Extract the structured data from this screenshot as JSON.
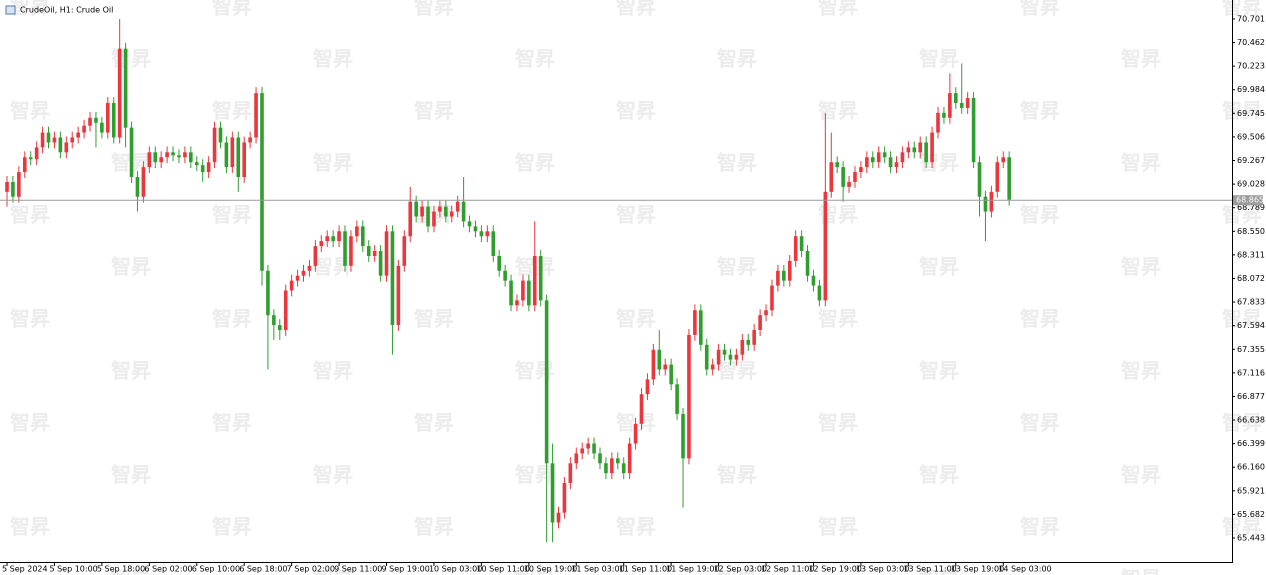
{
  "chart_data": {
    "type": "candlestick",
    "title": "CrudeOil, H1:  Crude Oil",
    "watermark": "智昇",
    "up_color": "#e8373d",
    "down_color": "#2f9e2f",
    "ylim": [
      65.2,
      70.893
    ],
    "yticks": [
      70.701,
      70.462,
      70.223,
      69.984,
      69.745,
      69.506,
      69.267,
      69.028,
      68.789,
      {
        "value": 68.55,
        "label": "68.550"
      },
      68.311,
      68.072,
      67.833,
      67.594,
      67.355,
      67.116,
      66.877,
      66.638,
      66.399,
      {
        "value": 66.16,
        "label": "66.160"
      },
      65.921,
      65.682,
      65.443
    ],
    "last_price": 68.865,
    "categories": [
      "5 Sep 2024",
      null,
      null,
      null,
      null,
      null,
      null,
      null,
      "5 Sep 10:00",
      null,
      null,
      null,
      null,
      null,
      null,
      null,
      "5 Sep 18:00",
      null,
      null,
      null,
      null,
      null,
      null,
      null,
      "6 Sep 02:00",
      null,
      null,
      null,
      null,
      null,
      null,
      null,
      "6 Sep 10:00",
      null,
      null,
      null,
      null,
      null,
      null,
      null,
      "6 Sep 18:00",
      null,
      null,
      null,
      null,
      null,
      null,
      null,
      "7 Sep 02:00",
      null,
      null,
      null,
      null,
      null,
      null,
      null,
      "9 Sep 11:00",
      null,
      null,
      null,
      null,
      null,
      null,
      null,
      "9 Sep 19:00",
      null,
      null,
      null,
      null,
      null,
      null,
      null,
      "10 Sep 03:00",
      null,
      null,
      null,
      null,
      null,
      null,
      null,
      "10 Sep 11:00",
      null,
      null,
      null,
      null,
      null,
      null,
      null,
      "10 Sep 19:00",
      null,
      null,
      null,
      null,
      null,
      null,
      null,
      "11 Sep 03:00",
      null,
      null,
      null,
      null,
      null,
      null,
      null,
      "11 Sep 11:00",
      null,
      null,
      null,
      null,
      null,
      null,
      null,
      "11 Sep 19:00",
      null,
      null,
      null,
      null,
      null,
      null,
      null,
      "12 Sep 03:00",
      null,
      null,
      null,
      null,
      null,
      null,
      null,
      "12 Sep 11:00",
      null,
      null,
      null,
      null,
      null,
      null,
      null,
      "12 Sep 19:00",
      null,
      null,
      null,
      null,
      null,
      null,
      null,
      "13 Sep 03:00",
      null,
      null,
      null,
      null,
      null,
      null,
      null,
      "13 Sep 11:00",
      null,
      null,
      null,
      null,
      null,
      null,
      null,
      "13 Sep 19:00",
      null,
      null,
      null,
      null,
      null,
      null,
      null,
      "14 Sep 03:00",
      null
    ],
    "open": [
      68.95,
      69.05,
      68.9,
      69.15,
      69.3,
      69.28,
      69.4,
      69.55,
      69.45,
      69.5,
      69.35,
      69.45,
      69.5,
      69.55,
      69.62,
      69.7,
      69.65,
      69.55,
      69.85,
      69.5,
      70.4,
      69.6,
      69.1,
      68.9,
      69.2,
      69.35,
      69.25,
      69.3,
      69.35,
      69.32,
      69.3,
      69.35,
      69.25,
      69.22,
      69.15,
      69.25,
      69.6,
      69.45,
      69.2,
      69.5,
      69.1,
      69.45,
      69.5,
      69.95,
      68.15,
      67.7,
      67.6,
      67.55,
      67.95,
      68.05,
      68.1,
      68.15,
      68.2,
      68.4,
      68.45,
      68.5,
      68.45,
      68.55,
      68.2,
      68.5,
      68.6,
      68.4,
      68.3,
      68.35,
      68.1,
      68.55,
      67.6,
      68.2,
      68.5,
      68.85,
      68.7,
      68.8,
      68.6,
      68.75,
      68.8,
      68.7,
      68.75,
      68.85,
      68.65,
      68.6,
      68.55,
      68.5,
      68.55,
      68.3,
      68.15,
      68.05,
      67.8,
      67.85,
      68.05,
      67.8,
      68.3,
      67.85,
      66.2,
      65.6,
      65.7,
      66.0,
      66.2,
      66.3,
      66.35,
      66.4,
      66.3,
      66.2,
      66.1,
      66.25,
      66.2,
      66.1,
      66.4,
      66.6,
      66.9,
      67.05,
      67.35,
      67.15,
      67.2,
      67.0,
      66.7,
      66.25,
      67.5,
      67.75,
      67.4,
      67.15,
      67.2,
      67.35,
      67.3,
      67.25,
      67.3,
      67.45,
      67.4,
      67.55,
      67.7,
      67.75,
      68.0,
      68.15,
      68.05,
      68.25,
      68.5,
      68.35,
      68.1,
      68.0,
      67.85,
      68.95,
      69.25,
      69.2,
      69.0,
      69.05,
      69.15,
      69.2,
      69.3,
      69.25,
      69.35,
      69.3,
      69.2,
      69.25,
      69.35,
      69.4,
      69.35,
      69.45,
      69.25,
      69.55,
      69.75,
      69.7,
      69.95,
      69.85,
      69.8,
      69.9,
      69.25,
      68.9,
      68.75,
      68.95,
      69.25,
      69.3
    ],
    "high": [
      69.11,
      69.11,
      69.21,
      69.36,
      69.36,
      69.46,
      69.61,
      69.61,
      69.56,
      69.56,
      69.51,
      69.56,
      69.61,
      69.68,
      69.76,
      69.76,
      69.71,
      69.91,
      69.91,
      70.7,
      70.46,
      69.66,
      69.16,
      69.26,
      69.41,
      69.41,
      69.36,
      69.41,
      69.41,
      69.38,
      69.41,
      69.41,
      69.31,
      69.28,
      69.31,
      69.66,
      69.66,
      69.51,
      69.56,
      69.56,
      69.51,
      69.56,
      70.01,
      70.01,
      68.21,
      67.76,
      67.66,
      68.01,
      68.11,
      68.16,
      68.21,
      68.26,
      68.46,
      68.51,
      68.56,
      68.56,
      68.61,
      68.61,
      68.56,
      68.66,
      68.66,
      68.46,
      68.41,
      68.41,
      68.61,
      68.61,
      68.26,
      68.56,
      69.0,
      68.91,
      68.86,
      68.86,
      68.81,
      68.86,
      68.86,
      68.81,
      68.91,
      69.1,
      68.71,
      68.66,
      68.61,
      68.61,
      68.61,
      68.36,
      68.21,
      68.11,
      67.91,
      68.11,
      68.11,
      68.65,
      68.36,
      67.91,
      66.4,
      65.76,
      66.06,
      66.26,
      66.36,
      66.41,
      66.46,
      66.46,
      66.36,
      66.26,
      66.31,
      66.31,
      66.26,
      66.46,
      66.66,
      66.96,
      67.11,
      67.41,
      67.55,
      67.26,
      67.26,
      67.06,
      66.76,
      67.56,
      67.81,
      67.81,
      67.46,
      67.26,
      67.41,
      67.41,
      67.36,
      67.36,
      67.51,
      67.51,
      67.61,
      67.76,
      67.81,
      68.06,
      68.21,
      68.21,
      68.31,
      68.56,
      68.56,
      68.41,
      68.16,
      68.06,
      69.75,
      69.55,
      69.31,
      69.26,
      69.11,
      69.21,
      69.26,
      69.36,
      69.36,
      69.41,
      69.41,
      69.36,
      69.31,
      69.41,
      69.46,
      69.46,
      69.51,
      69.51,
      69.61,
      69.81,
      69.81,
      70.15,
      70.01,
      70.25,
      69.96,
      69.96,
      69.31,
      68.96,
      69.01,
      69.31,
      69.36,
      69.36
    ],
    "low": [
      68.8,
      68.84,
      68.84,
      69.09,
      69.22,
      69.22,
      69.34,
      69.39,
      69.39,
      69.29,
      69.29,
      69.39,
      69.44,
      69.49,
      69.56,
      69.4,
      69.49,
      69.49,
      69.44,
      69.44,
      69.4,
      69.04,
      68.75,
      68.84,
      69.14,
      69.19,
      69.19,
      69.24,
      69.26,
      69.24,
      69.24,
      69.19,
      69.16,
      69.05,
      69.09,
      69.19,
      69.39,
      69.14,
      69.14,
      68.95,
      69.04,
      69.39,
      69.44,
      68.0,
      67.15,
      67.45,
      67.45,
      67.49,
      67.89,
      67.99,
      68.04,
      68.09,
      68.14,
      68.34,
      68.39,
      68.39,
      68.39,
      68.14,
      68.14,
      68.44,
      68.34,
      68.24,
      68.24,
      68.04,
      68.04,
      67.3,
      67.54,
      68.14,
      68.44,
      68.64,
      68.64,
      68.54,
      68.54,
      68.69,
      68.64,
      68.64,
      68.69,
      68.59,
      68.54,
      68.49,
      68.44,
      68.44,
      68.24,
      68.09,
      67.99,
      67.74,
      67.74,
      67.79,
      67.74,
      67.74,
      67.79,
      65.4,
      65.4,
      65.54,
      65.64,
      65.94,
      66.14,
      66.24,
      66.29,
      66.24,
      66.14,
      66.04,
      66.04,
      66.14,
      66.04,
      66.04,
      66.34,
      66.54,
      66.84,
      66.99,
      67.09,
      67.09,
      66.94,
      66.64,
      65.75,
      66.19,
      67.44,
      67.34,
      67.09,
      67.09,
      67.14,
      67.24,
      67.19,
      67.19,
      67.24,
      67.34,
      67.34,
      67.49,
      67.64,
      67.69,
      67.94,
      67.99,
      67.99,
      68.19,
      68.29,
      68.04,
      67.94,
      67.79,
      67.79,
      68.89,
      69.14,
      68.85,
      68.94,
      68.99,
      69.09,
      69.14,
      69.19,
      69.19,
      69.24,
      69.14,
      69.14,
      69.19,
      69.29,
      69.29,
      69.29,
      69.19,
      69.19,
      69.49,
      69.64,
      69.64,
      69.79,
      69.74,
      69.74,
      69.19,
      68.7,
      68.45,
      68.69,
      68.89,
      69.19,
      68.81
    ],
    "close": [
      69.05,
      68.9,
      69.15,
      69.3,
      69.28,
      69.4,
      69.55,
      69.45,
      69.5,
      69.35,
      69.45,
      69.5,
      69.55,
      69.62,
      69.7,
      69.65,
      69.55,
      69.85,
      69.5,
      70.4,
      69.6,
      69.1,
      68.9,
      69.2,
      69.35,
      69.25,
      69.3,
      69.35,
      69.32,
      69.3,
      69.35,
      69.25,
      69.22,
      69.15,
      69.25,
      69.6,
      69.45,
      69.2,
      69.5,
      69.1,
      69.45,
      69.5,
      69.95,
      68.15,
      67.7,
      67.6,
      67.55,
      67.95,
      68.05,
      68.1,
      68.15,
      68.2,
      68.4,
      68.45,
      68.5,
      68.45,
      68.55,
      68.2,
      68.5,
      68.6,
      68.4,
      68.3,
      68.35,
      68.1,
      68.55,
      67.6,
      68.2,
      68.5,
      68.85,
      68.7,
      68.8,
      68.6,
      68.75,
      68.8,
      68.7,
      68.75,
      68.85,
      68.65,
      68.6,
      68.55,
      68.5,
      68.55,
      68.3,
      68.15,
      68.05,
      67.8,
      67.85,
      68.05,
      67.8,
      68.3,
      67.85,
      66.2,
      65.6,
      65.7,
      66.0,
      66.2,
      66.3,
      66.35,
      66.4,
      66.3,
      66.2,
      66.1,
      66.25,
      66.2,
      66.1,
      66.4,
      66.6,
      66.9,
      67.05,
      67.35,
      67.15,
      67.2,
      67.0,
      66.7,
      66.25,
      67.5,
      67.75,
      67.4,
      67.15,
      67.2,
      67.35,
      67.3,
      67.25,
      67.3,
      67.45,
      67.4,
      67.55,
      67.7,
      67.75,
      68.0,
      68.15,
      68.05,
      68.25,
      68.5,
      68.35,
      68.1,
      68.0,
      67.85,
      68.95,
      69.25,
      69.2,
      69.0,
      69.05,
      69.15,
      69.2,
      69.3,
      69.25,
      69.35,
      69.3,
      69.2,
      69.25,
      69.35,
      69.4,
      69.35,
      69.45,
      69.25,
      69.55,
      69.75,
      69.7,
      69.95,
      69.85,
      69.8,
      69.9,
      69.25,
      68.9,
      68.75,
      68.95,
      69.25,
      69.3,
      68.87
    ]
  }
}
